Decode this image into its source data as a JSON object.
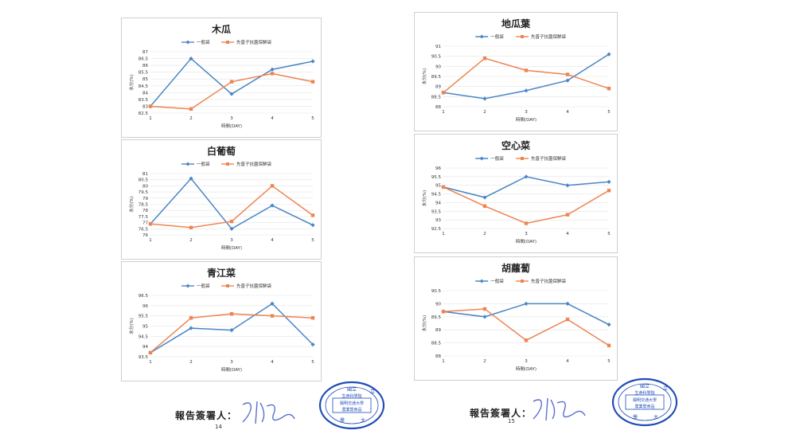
{
  "pages": [
    {
      "page_number": "14",
      "signer_label": "報告簽署人：",
      "stamp_text": [
        "國立",
        "生命科學院",
        "陽明交通大學",
        "農業暨食品",
        "學",
        "大",
        "立"
      ],
      "charts": [
        {
          "title": "木瓜",
          "type": "line",
          "categories": [
            "1",
            "2",
            "3",
            "4",
            "5"
          ],
          "xlabel": "時間(DAY)",
          "ylabel": "水分(%)",
          "ylim": [
            82.5,
            87
          ],
          "yticks": [
            "82.5",
            "83",
            "83.5",
            "84",
            "84.5",
            "85",
            "85.5",
            "86",
            "86.5",
            "87"
          ],
          "series": [
            {
              "name": "一般袋",
              "color": "#4a86c5",
              "values": [
                83.0,
                86.5,
                83.9,
                85.7,
                86.3
              ]
            },
            {
              "name": "先普子抗菌保鮮袋",
              "color": "#ee8452",
              "values": [
                83.0,
                82.8,
                84.8,
                85.4,
                84.8
              ]
            }
          ]
        },
        {
          "title": "白葡萄",
          "type": "line",
          "categories": [
            "1",
            "2",
            "3",
            "4",
            "5"
          ],
          "xlabel": "時間(DAY)",
          "ylabel": "水分(%)",
          "ylim": [
            76,
            81
          ],
          "yticks": [
            "76",
            "76.5",
            "77",
            "77.5",
            "78",
            "78.5",
            "79",
            "79.5",
            "80",
            "80.5",
            "81"
          ],
          "series": [
            {
              "name": "一般袋",
              "color": "#4a86c5",
              "values": [
                76.9,
                80.6,
                76.5,
                78.4,
                76.8
              ]
            },
            {
              "name": "先普子抗菌保鮮袋",
              "color": "#ee8452",
              "values": [
                76.9,
                76.6,
                77.1,
                80.0,
                77.6
              ]
            }
          ]
        },
        {
          "title": "青江菜",
          "type": "line",
          "categories": [
            "1",
            "2",
            "3",
            "4",
            "5"
          ],
          "xlabel": "時間(DAY)",
          "ylabel": "水分(%)",
          "ylim": [
            93.5,
            96.5
          ],
          "yticks": [
            "93.5",
            "94",
            "94.5",
            "95",
            "95.5",
            "96",
            "96.5"
          ],
          "series": [
            {
              "name": "一般袋",
              "color": "#4a86c5",
              "values": [
                93.7,
                94.9,
                94.8,
                96.1,
                94.1
              ]
            },
            {
              "name": "先普子抗菌保鮮袋",
              "color": "#ee8452",
              "values": [
                93.7,
                95.4,
                95.6,
                95.5,
                95.4
              ]
            }
          ]
        }
      ]
    },
    {
      "page_number": "15",
      "signer_label": "報告簽署人：",
      "stamp_text": [
        "國立",
        "生命科學院",
        "陽明交通大學",
        "農業暨食品",
        "學",
        "大",
        "立"
      ],
      "charts": [
        {
          "title": "地瓜葉",
          "type": "line",
          "categories": [
            "1",
            "2",
            "3",
            "4",
            "5"
          ],
          "xlabel": "時間(DAY)",
          "ylabel": "水分(%)",
          "ylim": [
            88,
            91
          ],
          "yticks": [
            "88",
            "88.5",
            "89",
            "89.5",
            "90",
            "90.5",
            "91"
          ],
          "series": [
            {
              "name": "一般袋",
              "color": "#4a86c5",
              "values": [
                88.7,
                88.4,
                88.8,
                89.3,
                90.6
              ]
            },
            {
              "name": "先普子抗菌保鮮袋",
              "color": "#ee8452",
              "values": [
                88.7,
                90.4,
                89.8,
                89.6,
                88.9
              ]
            }
          ]
        },
        {
          "title": "空心菜",
          "type": "line",
          "categories": [
            "1",
            "2",
            "3",
            "4",
            "5"
          ],
          "xlabel": "時間(DAY)",
          "ylabel": "水分(%)",
          "ylim": [
            92.5,
            96
          ],
          "yticks": [
            "92.5",
            "93",
            "93.5",
            "94",
            "94.5",
            "95",
            "95.5",
            "96"
          ],
          "series": [
            {
              "name": "一般袋",
              "color": "#4a86c5",
              "values": [
                94.9,
                94.3,
                95.5,
                95.0,
                95.2
              ]
            },
            {
              "name": "先普子抗菌保鮮袋",
              "color": "#ee8452",
              "values": [
                94.9,
                93.8,
                92.8,
                93.3,
                94.7
              ]
            }
          ]
        },
        {
          "title": "胡蘿蔔",
          "type": "line",
          "categories": [
            "1",
            "2",
            "3",
            "4",
            "5"
          ],
          "xlabel": "時間(DAY)",
          "ylabel": "水分(%)",
          "ylim": [
            88,
            90.5
          ],
          "yticks": [
            "88",
            "88.5",
            "89",
            "89.5",
            "90",
            "90.5"
          ],
          "series": [
            {
              "name": "一般袋",
              "color": "#4a86c5",
              "values": [
                89.7,
                89.5,
                90.0,
                90.0,
                89.2
              ]
            },
            {
              "name": "先普子抗菌保鮮袋",
              "color": "#ee8452",
              "values": [
                89.7,
                89.8,
                88.6,
                89.4,
                88.4
              ]
            }
          ]
        }
      ]
    }
  ]
}
